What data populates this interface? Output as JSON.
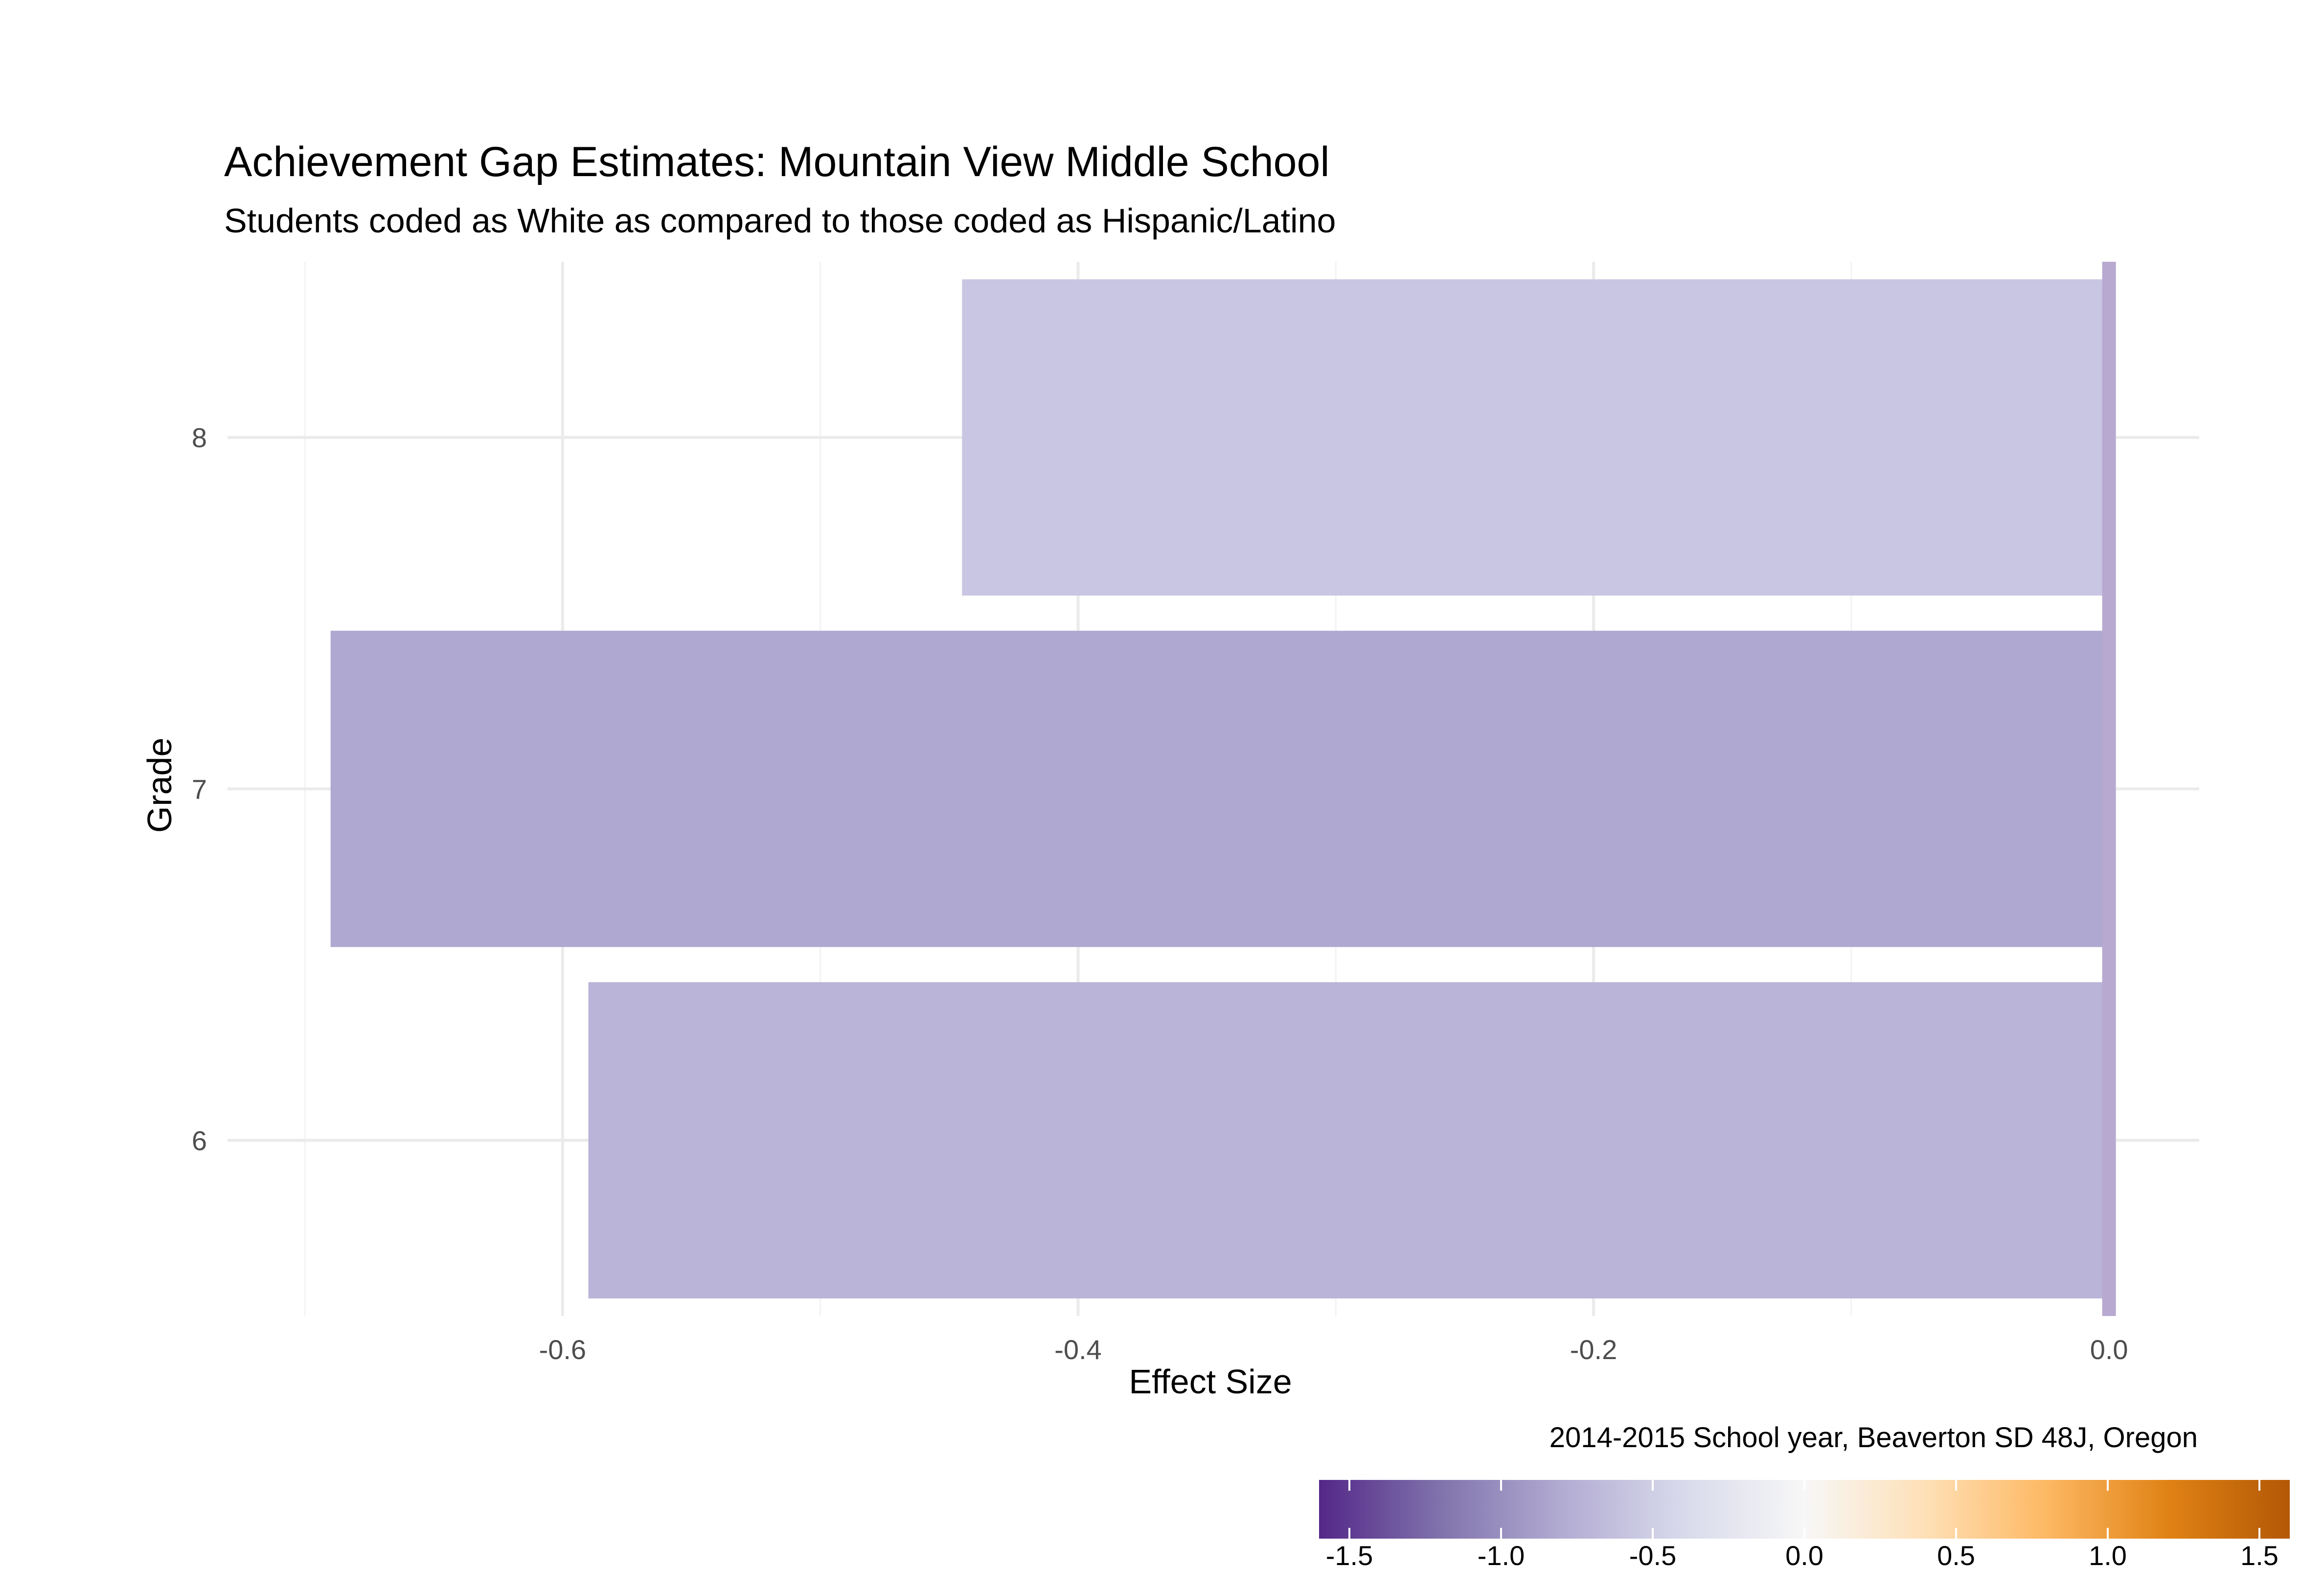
{
  "chart_data": {
    "type": "bar",
    "orientation": "horizontal",
    "title": "Achievement Gap Estimates: Mountain View Middle School",
    "subtitle": "Students coded as White as compared to those coded as Hispanic/Latino",
    "caption": "2014-2015 School year, Beaverton SD 48J, Oregon",
    "xlabel": "Effect Size",
    "ylabel": "Grade",
    "categories": [
      "6",
      "7",
      "8"
    ],
    "values": [
      -0.59,
      -0.69,
      -0.445
    ],
    "bar_colors": [
      "#bab4d8",
      "#afa8d0",
      "#c9c6e3"
    ],
    "xlim": [
      -0.73,
      0.035
    ],
    "x_ticks": [
      -0.6,
      -0.4,
      -0.2,
      0.0
    ],
    "x_tick_labels": [
      "-0.6",
      "-0.4",
      "-0.2",
      "0.0"
    ],
    "reference_line": {
      "x": 0.0,
      "color": "#b8a9d0"
    },
    "grid": true,
    "legend": {
      "position": "bottom-right",
      "type": "colorbar",
      "range": [
        -1.6,
        1.6
      ],
      "ticks": [
        -1.5,
        -1.0,
        -0.5,
        0.0,
        0.5,
        1.0,
        1.5
      ],
      "tick_labels": [
        "-1.5",
        "-1.0",
        "-0.5",
        "0.0",
        "0.5",
        "1.0",
        "1.5"
      ],
      "colors": [
        "#542788",
        "#8073ac",
        "#b2abd2",
        "#d8daeb",
        "#f7f7f7",
        "#fee0b6",
        "#fdb863",
        "#e08214",
        "#b35806"
      ]
    }
  }
}
